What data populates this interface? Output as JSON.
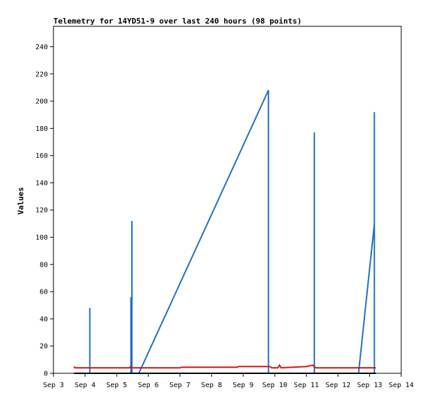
{
  "chart_data": {
    "type": "line",
    "title": "Telemetry for 14YD51-9 over last 240 hours (98 points)",
    "xlabel": "",
    "ylabel": "Values",
    "xlim": [
      3.0,
      14.0
    ],
    "ylim": [
      0,
      255
    ],
    "x_ticks": [
      {
        "value": 3,
        "label": "Sep 3"
      },
      {
        "value": 4,
        "label": "Sep 4"
      },
      {
        "value": 5,
        "label": "Sep 5"
      },
      {
        "value": 6,
        "label": "Sep 6"
      },
      {
        "value": 7,
        "label": "Sep 7"
      },
      {
        "value": 8,
        "label": "Sep 8"
      },
      {
        "value": 9,
        "label": "Sep 9"
      },
      {
        "value": 10,
        "label": "Sep 10"
      },
      {
        "value": 11,
        "label": "Sep 11"
      },
      {
        "value": 12,
        "label": "Sep 12"
      },
      {
        "value": 13,
        "label": "Sep 13"
      },
      {
        "value": 14,
        "label": "Sep 14"
      }
    ],
    "y_ticks": [
      0,
      20,
      40,
      60,
      80,
      100,
      120,
      140,
      160,
      180,
      200,
      220,
      240
    ],
    "grid": false,
    "legend": "none",
    "series": [
      {
        "color": "#1f6fc4",
        "points": [
          [
            4.15,
            0
          ],
          [
            4.15,
            48
          ],
          [
            4.15,
            0
          ],
          [
            5.45,
            0
          ],
          [
            5.45,
            56
          ],
          [
            5.48,
            0
          ],
          [
            5.48,
            112
          ],
          [
            5.48,
            0
          ],
          [
            5.7,
            0
          ],
          [
            9.8,
            208
          ],
          [
            9.8,
            0
          ],
          [
            11.25,
            0
          ],
          [
            11.25,
            177
          ],
          [
            11.25,
            0
          ],
          [
            12.65,
            0
          ],
          [
            13.15,
            110
          ],
          [
            13.15,
            192
          ],
          [
            13.15,
            0
          ]
        ]
      },
      {
        "color": "#dd1111",
        "points": [
          [
            3.65,
            5
          ],
          [
            3.68,
            4
          ],
          [
            5.4,
            4
          ],
          [
            5.45,
            5
          ],
          [
            5.5,
            4
          ],
          [
            7.0,
            4
          ],
          [
            7.05,
            4.5
          ],
          [
            8.8,
            4.5
          ],
          [
            8.85,
            5
          ],
          [
            9.85,
            5
          ],
          [
            9.9,
            4
          ],
          [
            10.1,
            4
          ],
          [
            10.15,
            6
          ],
          [
            10.2,
            4
          ],
          [
            11.0,
            5
          ],
          [
            11.2,
            6
          ],
          [
            11.3,
            4
          ],
          [
            13.2,
            4
          ]
        ]
      },
      {
        "color": "#000000",
        "points": [
          [
            3.65,
            0
          ],
          [
            13.2,
            0
          ]
        ]
      }
    ]
  }
}
